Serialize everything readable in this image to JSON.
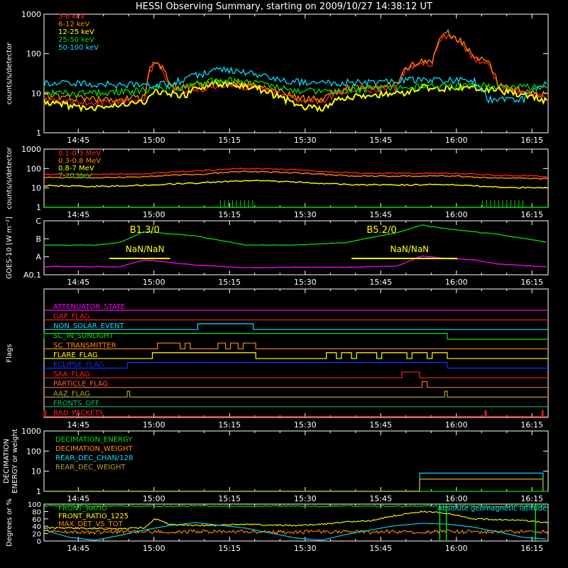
{
  "title": "HESSI Observing Summary, starting on 2009/10/27 14:38:12 UT",
  "colors": {
    "bg": "#000000",
    "axis": "#ffffff",
    "red": "#ff2020",
    "orange": "#ff8a00",
    "yellow": "#ffff00",
    "green": "#00e000",
    "cyan": "#00e0ff",
    "magenta": "#ff00ff",
    "blue": "#1030ff",
    "olive": "#b0a030",
    "salmon": "#ff6040",
    "dkgreen": "#00c060"
  },
  "time_axis": {
    "tick_labels": [
      "14:45",
      "15:00",
      "15:15",
      "15:30",
      "15:45",
      "16:00",
      "16:15"
    ]
  },
  "chart_data": [
    {
      "type": "line",
      "name": "lightcurves_low",
      "ylabel": "counts/s/detector",
      "ylog": true,
      "yrange": [
        1,
        1000
      ],
      "ytick_labels": [
        "1",
        "10",
        "100",
        "1000"
      ],
      "xrange_min": [
        0,
        100
      ],
      "x_minutes": [
        0,
        5,
        10,
        15,
        20,
        22,
        25,
        28,
        30,
        35,
        40,
        45,
        50,
        55,
        60,
        65,
        70,
        72,
        75,
        77,
        80,
        85,
        88,
        90,
        95,
        100
      ],
      "series": [
        {
          "name": "3-6 keV",
          "color": "#ff2020",
          "values": [
            7,
            6,
            6,
            6,
            7,
            60,
            14,
            11,
            12,
            16,
            15,
            11,
            7,
            6,
            12,
            12,
            14,
            40,
            55,
            60,
            300,
            80,
            55,
            14,
            10,
            8
          ]
        },
        {
          "name": "6-12 keV",
          "color": "#ff8a00",
          "values": [
            9,
            8,
            7,
            7,
            8,
            70,
            16,
            14,
            16,
            20,
            18,
            12,
            8,
            7,
            14,
            14,
            16,
            45,
            65,
            70,
            350,
            90,
            60,
            16,
            12,
            9
          ]
        },
        {
          "name": "12-25 keV",
          "color": "#ffff00",
          "values": [
            6,
            5,
            4,
            5,
            6,
            12,
            10,
            9,
            13,
            18,
            16,
            10,
            5,
            4,
            8,
            9,
            10,
            11,
            14,
            13,
            14,
            14,
            13,
            12,
            9,
            6
          ]
        },
        {
          "name": "25-50 keV",
          "color": "#00e000",
          "values": [
            10,
            10,
            10,
            11,
            12,
            14,
            14,
            14,
            17,
            22,
            20,
            15,
            12,
            11,
            12,
            13,
            14,
            14,
            15,
            15,
            15,
            16,
            15,
            15,
            15,
            14
          ]
        },
        {
          "name": "50-100 keV",
          "color": "#00e0ff",
          "values": [
            18,
            18,
            17,
            17,
            16,
            16,
            18,
            22,
            28,
            40,
            35,
            25,
            20,
            18,
            19,
            20,
            21,
            22,
            22,
            22,
            22,
            22,
            7,
            7,
            7,
            18
          ]
        }
      ]
    },
    {
      "type": "line",
      "name": "lightcurves_high",
      "ylabel": "counts/s/detector",
      "ylog": true,
      "yrange": [
        1,
        1000
      ],
      "ytick_labels": [
        "1",
        "10",
        "100",
        "1000"
      ],
      "xrange_min": [
        0,
        100
      ],
      "x_minutes": [
        0,
        10,
        20,
        30,
        40,
        50,
        60,
        70,
        80,
        90,
        100
      ],
      "series": [
        {
          "name": "0.1-0.3 MeV",
          "color": "#ff2020",
          "values": [
            50,
            48,
            55,
            75,
            100,
            85,
            60,
            55,
            58,
            45,
            40
          ]
        },
        {
          "name": "0.3-0.8 MeV",
          "color": "#ff8a00",
          "values": [
            35,
            33,
            38,
            50,
            70,
            60,
            42,
            40,
            42,
            32,
            30
          ]
        },
        {
          "name": "0.8-7 MeV",
          "color": "#ffff00",
          "values": [
            13,
            12,
            14,
            18,
            24,
            20,
            15,
            14,
            15,
            11,
            10
          ]
        },
        {
          "name": "7-20 MeV",
          "color": "#00e000",
          "values": [
            1,
            1,
            1,
            1,
            1,
            1,
            1,
            1,
            1,
            1,
            1
          ]
        }
      ]
    },
    {
      "type": "line",
      "name": "goes",
      "ylabel": "GOES-10 [W m⁻²]",
      "yclass_labels": [
        "A0.1",
        "A",
        "B",
        "C"
      ],
      "x_minutes": [
        0,
        10,
        15,
        20,
        30,
        40,
        50,
        60,
        70,
        75,
        80,
        85,
        90,
        100
      ],
      "series": [
        {
          "name": "goes_long",
          "color": "#00e000",
          "values": [
            0.55,
            0.55,
            0.6,
            0.8,
            0.72,
            0.55,
            0.55,
            0.6,
            0.78,
            0.92,
            0.85,
            0.8,
            0.75,
            0.6
          ]
        },
        {
          "name": "goes_short",
          "color": "#ff00ff",
          "values": [
            0.15,
            0.15,
            0.15,
            0.28,
            0.18,
            0.13,
            0.14,
            0.14,
            0.16,
            0.35,
            0.3,
            0.28,
            0.2,
            0.14
          ]
        }
      ],
      "annotations": [
        {
          "text": "B1.3/0",
          "color": "#ffff00",
          "x_min": 17
        },
        {
          "text": "NaN/NaN",
          "color": "#ffff00",
          "x_min": 19
        },
        {
          "text": "B5.2/0",
          "color": "#ffff00",
          "x_min": 64
        },
        {
          "text": "NaN/NaN",
          "color": "#ffff00",
          "x_min": 75
        }
      ]
    },
    {
      "type": "step",
      "name": "flags",
      "ylabel": "Flags",
      "flags": [
        {
          "name": "ATTENUATOR_STATE",
          "color": "#ff00ff",
          "segments": []
        },
        {
          "name": "GAP_FLAG",
          "color": "#ff2020",
          "segments": []
        },
        {
          "name": "NON_SOLAR_EVENT",
          "color": "#00e0ff",
          "segments": [
            [
              30.5,
              41.5
            ]
          ]
        },
        {
          "name": "SC_IN_SUNLIGHT",
          "color": "#00e000",
          "segments": [
            [
              0,
              80
            ]
          ]
        },
        {
          "name": "SC_TRANSMITTER",
          "color": "#ff8a00",
          "segments": [
            [
              22.5,
              27
            ],
            [
              28,
              29
            ],
            [
              34.5,
              36
            ],
            [
              37,
              38.5
            ],
            [
              39.5,
              42
            ]
          ]
        },
        {
          "name": "FLARE_FLAG",
          "color": "#ffff00",
          "segments": [
            [
              21.5,
              42
            ],
            [
              56,
              58
            ],
            [
              59,
              61
            ],
            [
              62,
              66
            ],
            [
              67,
              72
            ],
            [
              73,
              76
            ],
            [
              77,
              80
            ]
          ]
        },
        {
          "name": "ECLIPSE_FLAG",
          "color": "#1030ff",
          "segments": [
            [
              16.5,
              80
            ]
          ]
        },
        {
          "name": "SAA_FLAG",
          "color": "#ff2020",
          "segments": [
            [
              71,
              74.5
            ]
          ]
        },
        {
          "name": "PARTICLE_FLAG",
          "color": "#ff6040",
          "segments": [
            [
              75,
              76
            ]
          ]
        },
        {
          "name": "AAZ_FLAG",
          "color": "#b0a030",
          "segments": [
            [
              16.5,
              17
            ],
            [
              79.5,
              80
            ]
          ]
        },
        {
          "name": "FRONTS_OFF",
          "color": "#00c060",
          "segments": []
        },
        {
          "name": "BAD_PACKETS",
          "color": "#ff2020",
          "segments": [
            [
              0,
              0.3
            ],
            [
              87.5,
              87.7
            ],
            [
              98.8,
              99
            ]
          ]
        }
      ]
    },
    {
      "type": "step",
      "name": "decimation",
      "ylabel": "DECIMATION ENERGY or weight",
      "ylog": true,
      "yrange": [
        1,
        1000
      ],
      "ytick_labels": [
        "1",
        "10",
        "100",
        "1000"
      ],
      "series": [
        {
          "name": "DECIMATION_ENERGY",
          "color": "#00e000",
          "points": [
            [
              0,
              1
            ],
            [
              100,
              1
            ]
          ]
        },
        {
          "name": "DECIMATION_WEIGHT",
          "color": "#ff8a00",
          "points": [
            [
              0,
              1
            ],
            [
              74.5,
              1
            ],
            [
              74.5,
              4
            ],
            [
              99,
              4
            ],
            [
              99,
              1
            ]
          ]
        },
        {
          "name": "REAR_DEC_CHAN/128",
          "color": "#00e0ff",
          "points": [
            [
              0,
              1
            ],
            [
              74.5,
              1
            ],
            [
              74.5,
              8
            ],
            [
              99,
              8
            ],
            [
              99,
              1
            ]
          ]
        },
        {
          "name": "REAR_DEC_WEIGHT",
          "color": "#b0a030",
          "points": [
            [
              0,
              1
            ],
            [
              74.5,
              1
            ],
            [
              74.5,
              4
            ],
            [
              99,
              4
            ],
            [
              99,
              1
            ]
          ]
        }
      ]
    },
    {
      "type": "line",
      "name": "geometry",
      "ylabel": "Degrees or %",
      "yrange": [
        0,
        100
      ],
      "ytick_labels": [
        "0",
        "20",
        "40",
        "60",
        "80",
        "100"
      ],
      "x_minutes": [
        0,
        5,
        10,
        15,
        20,
        22,
        25,
        30,
        40,
        50,
        55,
        60,
        65,
        68,
        70,
        75,
        80,
        85,
        90,
        95,
        100
      ],
      "series": [
        {
          "name": "FRONT_RATIO",
          "color": "#00e000",
          "values": [
            95,
            95,
            94,
            95,
            94,
            95,
            94,
            95,
            94,
            95,
            94,
            95,
            94,
            95,
            94,
            95,
            94,
            95,
            94,
            95,
            94
          ]
        },
        {
          "name": "FRONT_RATIO_1225",
          "color": "#ffff00",
          "values": [
            36,
            35,
            34,
            33,
            36,
            60,
            45,
            42,
            45,
            42,
            45,
            52,
            55,
            65,
            70,
            80,
            75,
            60,
            58,
            56,
            50
          ]
        },
        {
          "name": "MAX_DET_VS_TOT",
          "color": "#ff8a00",
          "values": [
            26,
            25,
            24,
            25,
            26,
            25,
            24,
            26,
            25,
            24,
            26,
            25,
            24,
            26,
            25,
            24,
            26,
            25,
            24,
            26,
            25
          ]
        },
        {
          "name": "Absolute geomagnetic latitude",
          "color": "#00e0ff",
          "values": [
            30,
            10,
            2,
            15,
            30,
            35,
            42,
            50,
            35,
            8,
            2,
            18,
            30,
            38,
            42,
            48,
            46,
            38,
            25,
            10,
            5
          ]
        }
      ]
    }
  ]
}
